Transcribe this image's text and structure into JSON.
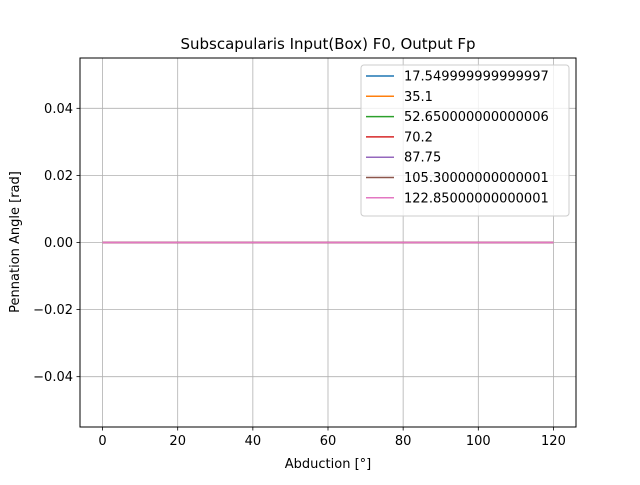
{
  "chart_data": {
    "type": "line",
    "title": "Subscapularis Input(Box) F0, Output Fp",
    "xlabel": "Abduction [°]",
    "ylabel": "Pennation Angle [rad]",
    "xlim": [
      -6,
      126
    ],
    "ylim": [
      -0.055,
      0.055
    ],
    "x_ticks": [
      0,
      20,
      40,
      60,
      80,
      100,
      120
    ],
    "x_tick_labels": [
      "0",
      "20",
      "40",
      "60",
      "80",
      "100",
      "120"
    ],
    "y_ticks": [
      -0.04,
      -0.02,
      0.0,
      0.02,
      0.04
    ],
    "y_tick_labels": [
      "−0.04",
      "−0.02",
      "0.00",
      "0.02",
      "0.04"
    ],
    "grid": true,
    "legend_position": "top-right",
    "x": [
      0,
      20,
      40,
      60,
      80,
      100,
      120
    ],
    "series": [
      {
        "name": "17.549999999999997",
        "color": "#1f77b4",
        "values": [
          0,
          0,
          0,
          0,
          0,
          0,
          0
        ]
      },
      {
        "name": "35.1",
        "color": "#ff7f0e",
        "values": [
          0,
          0,
          0,
          0,
          0,
          0,
          0
        ]
      },
      {
        "name": "52.650000000000006",
        "color": "#2ca02c",
        "values": [
          0,
          0,
          0,
          0,
          0,
          0,
          0
        ]
      },
      {
        "name": "70.2",
        "color": "#d62728",
        "values": [
          0,
          0,
          0,
          0,
          0,
          0,
          0
        ]
      },
      {
        "name": "87.75",
        "color": "#9467bd",
        "values": [
          0,
          0,
          0,
          0,
          0,
          0,
          0
        ]
      },
      {
        "name": "105.30000000000001",
        "color": "#8c564b",
        "values": [
          0,
          0,
          0,
          0,
          0,
          0,
          0
        ]
      },
      {
        "name": "122.85000000000001",
        "color": "#e377c2",
        "values": [
          0,
          0,
          0,
          0,
          0,
          0,
          0
        ]
      }
    ]
  }
}
